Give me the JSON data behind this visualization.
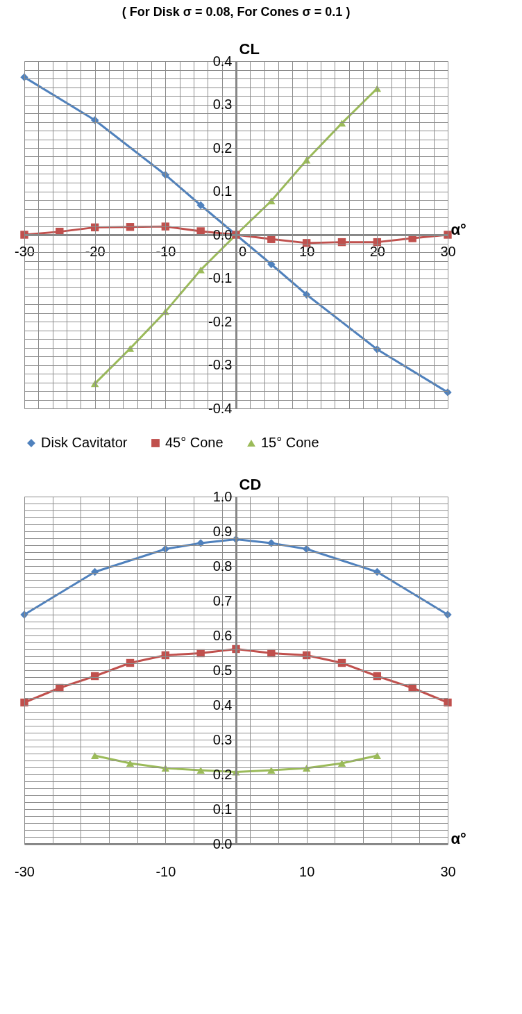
{
  "chart_data": [
    {
      "type": "line",
      "title": "( For Disk σ = 0.08, For Cones σ = 0.1  )",
      "xlabel": "α°",
      "ylabel": "CL",
      "legend": "bottom",
      "grid": true,
      "xlim": [
        -30,
        30
      ],
      "ylim": [
        -0.4,
        0.4
      ],
      "xticks": [
        -30,
        {
          "value": -28,
          "label": null
        },
        {
          "value": -26,
          "label": null
        },
        {
          "value": -24,
          "label": null
        },
        {
          "value": -22,
          "label": null
        },
        -20,
        {
          "value": -18,
          "label": null
        },
        {
          "value": -16,
          "label": null
        },
        {
          "value": -14,
          "label": null
        },
        {
          "value": -12,
          "label": null
        },
        -10,
        {
          "value": -8,
          "label": null
        },
        {
          "value": -6,
          "label": null
        },
        {
          "value": -4,
          "label": null
        },
        {
          "value": -2,
          "label": null
        },
        0,
        {
          "value": 2,
          "label": null
        },
        {
          "value": 4,
          "label": null
        },
        {
          "value": 6,
          "label": null
        },
        {
          "value": 8,
          "label": null
        },
        10,
        {
          "value": 12,
          "label": null
        },
        {
          "value": 14,
          "label": null
        },
        {
          "value": 16,
          "label": null
        },
        {
          "value": 18,
          "label": null
        },
        20,
        {
          "value": 22,
          "label": null
        },
        {
          "value": 24,
          "label": null
        },
        {
          "value": 26,
          "label": null
        },
        {
          "value": 28,
          "label": null
        },
        30
      ],
      "yticks": [
        -0.4,
        {
          "value": -0.38,
          "label": null
        },
        {
          "value": -0.36,
          "label": null
        },
        {
          "value": -0.34,
          "label": null
        },
        {
          "value": -0.32,
          "label": null
        },
        -0.3,
        {
          "value": -0.28,
          "label": null
        },
        {
          "value": -0.26,
          "label": null
        },
        {
          "value": -0.24,
          "label": null
        },
        {
          "value": -0.22,
          "label": null
        },
        -0.2,
        {
          "value": -0.18,
          "label": null
        },
        {
          "value": -0.16,
          "label": null
        },
        {
          "value": -0.14,
          "label": null
        },
        {
          "value": -0.12,
          "label": null
        },
        -0.1,
        {
          "value": -0.08,
          "label": null
        },
        {
          "value": -0.06,
          "label": null
        },
        {
          "value": -0.04,
          "label": null
        },
        {
          "value": -0.02,
          "label": null
        },
        {
          "value": 0,
          "label": "0.0"
        },
        {
          "value": 0.02,
          "label": null
        },
        {
          "value": 0.04,
          "label": null
        },
        {
          "value": 0.06,
          "label": null
        },
        {
          "value": 0.08,
          "label": null
        },
        0.1,
        {
          "value": 0.12,
          "label": null
        },
        {
          "value": 0.14,
          "label": null
        },
        {
          "value": 0.16,
          "label": null
        },
        {
          "value": 0.18,
          "label": null
        },
        0.2,
        {
          "value": 0.22,
          "label": null
        },
        {
          "value": 0.24,
          "label": null
        },
        {
          "value": 0.26,
          "label": null
        },
        {
          "value": 0.28,
          "label": null
        },
        0.3,
        {
          "value": 0.32,
          "label": null
        },
        {
          "value": 0.34,
          "label": null
        },
        {
          "value": 0.36,
          "label": null
        },
        {
          "value": 0.38,
          "label": null
        },
        0.4
      ],
      "series": [
        {
          "name": "Disk Cavitator",
          "color": "#4f81bd",
          "marker": "diamond",
          "x": [
            -30,
            -20,
            -10,
            -5,
            0,
            5,
            10,
            20,
            30
          ],
          "values": [
            0.363,
            0.264,
            0.138,
            0.068,
            0.0,
            -0.068,
            -0.138,
            -0.264,
            -0.363
          ]
        },
        {
          "name": "45° Cone",
          "color": "#c0504d",
          "marker": "square",
          "x": [
            -30,
            -25,
            -20,
            -15,
            -10,
            -5,
            0,
            5,
            10,
            15,
            20,
            25,
            30
          ],
          "values": [
            0.0,
            0.007,
            0.017,
            0.018,
            0.019,
            0.008,
            0.0,
            -0.01,
            -0.019,
            -0.017,
            -0.017,
            -0.008,
            0.0
          ]
        },
        {
          "name": "15° Cone",
          "color": "#9bbb59",
          "marker": "triangle",
          "x": [
            -20,
            -15,
            -10,
            -5,
            0,
            5,
            10,
            15,
            20
          ],
          "values": [
            -0.343,
            -0.262,
            -0.177,
            -0.081,
            0.0,
            0.078,
            0.172,
            0.257,
            0.337
          ]
        }
      ]
    },
    {
      "type": "line",
      "xlabel": "α°",
      "ylabel": "CD",
      "legend": false,
      "grid": true,
      "xlim": [
        -30,
        30
      ],
      "ylim": [
        0,
        1
      ],
      "xticks": [
        -30,
        {
          "value": -26,
          "label": null
        },
        {
          "value": -22,
          "label": null
        },
        {
          "value": -18,
          "label": null
        },
        {
          "value": -14,
          "label": null
        },
        -10,
        {
          "value": -6,
          "label": null
        },
        {
          "value": -2,
          "label": null
        },
        {
          "value": 2,
          "label": null
        },
        {
          "value": 6,
          "label": null
        },
        10,
        {
          "value": 14,
          "label": null
        },
        {
          "value": 18,
          "label": null
        },
        {
          "value": 22,
          "label": null
        },
        {
          "value": 26,
          "label": null
        },
        30
      ],
      "yticks": [
        {
          "value": 0,
          "label": "0.0"
        },
        {
          "value": 0.02,
          "label": null
        },
        {
          "value": 0.04,
          "label": null
        },
        {
          "value": 0.06,
          "label": null
        },
        {
          "value": 0.08,
          "label": null
        },
        0.1,
        {
          "value": 0.12,
          "label": null
        },
        {
          "value": 0.14,
          "label": null
        },
        {
          "value": 0.16,
          "label": null
        },
        {
          "value": 0.18,
          "label": null
        },
        0.2,
        {
          "value": 0.22,
          "label": null
        },
        {
          "value": 0.24,
          "label": null
        },
        {
          "value": 0.26,
          "label": null
        },
        {
          "value": 0.28,
          "label": null
        },
        0.3,
        {
          "value": 0.32,
          "label": null
        },
        {
          "value": 0.34,
          "label": null
        },
        {
          "value": 0.36,
          "label": null
        },
        {
          "value": 0.38,
          "label": null
        },
        0.4,
        {
          "value": 0.42,
          "label": null
        },
        {
          "value": 0.44,
          "label": null
        },
        {
          "value": 0.46,
          "label": null
        },
        {
          "value": 0.48,
          "label": null
        },
        0.5,
        {
          "value": 0.52,
          "label": null
        },
        {
          "value": 0.54,
          "label": null
        },
        {
          "value": 0.56,
          "label": null
        },
        {
          "value": 0.58,
          "label": null
        },
        0.6,
        {
          "value": 0.62,
          "label": null
        },
        {
          "value": 0.64,
          "label": null
        },
        {
          "value": 0.66,
          "label": null
        },
        {
          "value": 0.68,
          "label": null
        },
        0.7,
        {
          "value": 0.72,
          "label": null
        },
        {
          "value": 0.74,
          "label": null
        },
        {
          "value": 0.76,
          "label": null
        },
        {
          "value": 0.78,
          "label": null
        },
        0.8,
        {
          "value": 0.82,
          "label": null
        },
        {
          "value": 0.84,
          "label": null
        },
        {
          "value": 0.86,
          "label": null
        },
        {
          "value": 0.88,
          "label": null
        },
        0.9,
        {
          "value": 0.92,
          "label": null
        },
        {
          "value": 0.94,
          "label": null
        },
        {
          "value": 0.96,
          "label": null
        },
        {
          "value": 0.98,
          "label": null
        },
        {
          "value": 1,
          "label": "1.0"
        }
      ],
      "series": [
        {
          "color": "#4f81bd",
          "marker": "diamond",
          "x": [
            -30,
            -20,
            -10,
            -5,
            0,
            5,
            10,
            20,
            30
          ],
          "values": [
            0.66,
            0.783,
            0.849,
            0.866,
            0.877,
            0.866,
            0.849,
            0.783,
            0.66
          ]
        },
        {
          "color": "#c0504d",
          "marker": "square",
          "x": [
            -30,
            -25,
            -20,
            -15,
            -10,
            -5,
            0,
            5,
            10,
            15,
            20,
            25,
            30
          ],
          "values": [
            0.407,
            0.449,
            0.483,
            0.521,
            0.543,
            0.549,
            0.561,
            0.549,
            0.543,
            0.521,
            0.483,
            0.449,
            0.407
          ]
        },
        {
          "color": "#9bbb59",
          "marker": "triangle",
          "x": [
            -20,
            -15,
            -10,
            -5,
            0,
            5,
            10,
            15,
            20
          ],
          "values": [
            0.254,
            0.232,
            0.218,
            0.212,
            0.207,
            0.212,
            0.218,
            0.232,
            0.254
          ]
        }
      ]
    }
  ]
}
